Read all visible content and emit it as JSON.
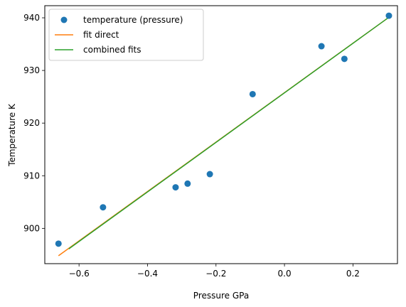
{
  "chart_data": {
    "type": "line",
    "title": "",
    "xlabel": "Pressure GPa",
    "ylabel": "Temperature K",
    "xlim": [
      -0.7,
      0.33
    ],
    "ylim": [
      893.3,
      942.3
    ],
    "xticks": [
      -0.6,
      -0.4,
      -0.2,
      0.0,
      0.2
    ],
    "xtick_labels": [
      "−0.6",
      "−0.4",
      "−0.2",
      "0.0",
      "0.2"
    ],
    "yticks": [
      900,
      910,
      920,
      930,
      940
    ],
    "ytick_labels": [
      "900",
      "910",
      "920",
      "930",
      "940"
    ],
    "grid": false,
    "legend_position": "top-left",
    "series": [
      {
        "name": "temperature (pressure)",
        "kind": "scatter",
        "color": "#1f77b4",
        "x": [
          -0.66,
          -0.53,
          -0.318,
          -0.283,
          -0.218,
          -0.093,
          0.108,
          0.175,
          0.305
        ],
        "y": [
          897.1,
          904.0,
          907.8,
          908.5,
          910.3,
          925.5,
          934.6,
          932.2,
          940.4
        ]
      },
      {
        "name": "fit direct",
        "kind": "line",
        "color": "#ff7f0e",
        "x": [
          -0.66,
          0.305
        ],
        "y": [
          894.8,
          940.1
        ]
      },
      {
        "name": "combined fits",
        "kind": "line",
        "color": "#2ca02c",
        "x": [
          -0.63,
          0.305
        ],
        "y": [
          896.1,
          940.1
        ]
      }
    ]
  }
}
